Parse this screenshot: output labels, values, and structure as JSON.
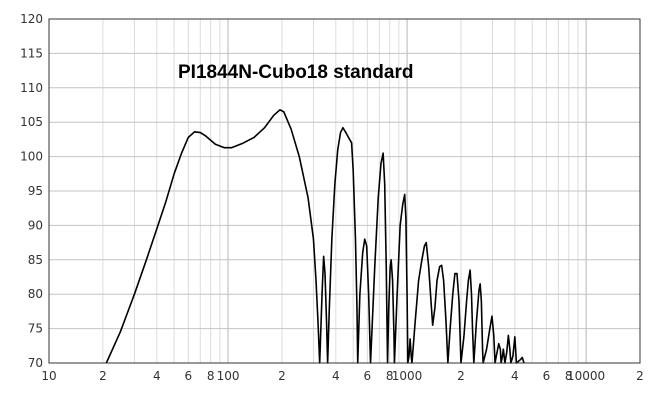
{
  "chart_data": {
    "type": "line",
    "title": "PI1844N-Cubo18 standard",
    "xlabel": "",
    "ylabel": "",
    "x_scale": "log",
    "xlim": [
      10,
      20000
    ],
    "ylim": [
      70,
      120
    ],
    "grid": true,
    "y_ticks": [
      70,
      75,
      80,
      85,
      90,
      95,
      100,
      105,
      110,
      115,
      120
    ],
    "x_tick_labels": [
      {
        "x": 10,
        "label": "10"
      },
      {
        "x": 20,
        "label": "2"
      },
      {
        "x": 40,
        "label": "4"
      },
      {
        "x": 60,
        "label": "6"
      },
      {
        "x": 80,
        "label": "8"
      },
      {
        "x": 100,
        "label": "100"
      },
      {
        "x": 200,
        "label": "2"
      },
      {
        "x": 400,
        "label": "4"
      },
      {
        "x": 600,
        "label": "6"
      },
      {
        "x": 800,
        "label": "8"
      },
      {
        "x": 1000,
        "label": "1000"
      },
      {
        "x": 2000,
        "label": "2"
      },
      {
        "x": 4000,
        "label": "4"
      },
      {
        "x": 6000,
        "label": "6"
      },
      {
        "x": 8000,
        "label": "8"
      },
      {
        "x": 10000,
        "label": "10000"
      },
      {
        "x": 20000,
        "label": "2"
      }
    ],
    "series": [
      {
        "color": "#000000",
        "points": [
          [
            20.9,
            70
          ],
          [
            25,
            74.5
          ],
          [
            30,
            80
          ],
          [
            35,
            85
          ],
          [
            40,
            89.5
          ],
          [
            45,
            93.5
          ],
          [
            50,
            97.5
          ],
          [
            55,
            100.5
          ],
          [
            60,
            102.8
          ],
          [
            65,
            103.6
          ],
          [
            70,
            103.5
          ],
          [
            75,
            103
          ],
          [
            85,
            101.8
          ],
          [
            95,
            101.3
          ],
          [
            105,
            101.3
          ],
          [
            120,
            101.9
          ],
          [
            140,
            102.8
          ],
          [
            160,
            104.2
          ],
          [
            180,
            106
          ],
          [
            195,
            106.8
          ],
          [
            205,
            106.5
          ],
          [
            225,
            104
          ],
          [
            250,
            100
          ],
          [
            280,
            94
          ],
          [
            300,
            88
          ],
          [
            310,
            82
          ],
          [
            318,
            76
          ],
          [
            325,
            70
          ],
          [
            335,
            80
          ],
          [
            342,
            85.5
          ],
          [
            348,
            83
          ],
          [
            355,
            76
          ],
          [
            360,
            70
          ],
          [
            368,
            78
          ],
          [
            380,
            88
          ],
          [
            395,
            96
          ],
          [
            410,
            101
          ],
          [
            425,
            103.5
          ],
          [
            438,
            104.2
          ],
          [
            455,
            103.5
          ],
          [
            475,
            102.6
          ],
          [
            490,
            102
          ],
          [
            500,
            98
          ],
          [
            515,
            88
          ],
          [
            525,
            78
          ],
          [
            530,
            70
          ],
          [
            545,
            80
          ],
          [
            565,
            86
          ],
          [
            580,
            88
          ],
          [
            595,
            87
          ],
          [
            610,
            80
          ],
          [
            625,
            70
          ],
          [
            660,
            84
          ],
          [
            690,
            94
          ],
          [
            715,
            99
          ],
          [
            735,
            100.5
          ],
          [
            750,
            96
          ],
          [
            765,
            84
          ],
          [
            778,
            70
          ],
          [
            790,
            78
          ],
          [
            805,
            84
          ],
          [
            815,
            85
          ],
          [
            830,
            82
          ],
          [
            845,
            74
          ],
          [
            850,
            70
          ],
          [
            880,
            80
          ],
          [
            915,
            90
          ],
          [
            945,
            93
          ],
          [
            970,
            94.5
          ],
          [
            985,
            91
          ],
          [
            1000,
            80
          ],
          [
            1010,
            70
          ],
          [
            1025,
            71
          ],
          [
            1040,
            73.5
          ],
          [
            1055,
            71
          ],
          [
            1065,
            70
          ],
          [
            1110,
            76
          ],
          [
            1160,
            82
          ],
          [
            1210,
            85
          ],
          [
            1250,
            87
          ],
          [
            1280,
            87.5
          ],
          [
            1320,
            84
          ],
          [
            1360,
            79
          ],
          [
            1390,
            75.5
          ],
          [
            1430,
            78
          ],
          [
            1470,
            82
          ],
          [
            1520,
            84
          ],
          [
            1560,
            84.2
          ],
          [
            1600,
            82
          ],
          [
            1650,
            76
          ],
          [
            1690,
            70
          ],
          [
            1740,
            75
          ],
          [
            1800,
            80
          ],
          [
            1850,
            83
          ],
          [
            1900,
            83
          ],
          [
            1950,
            79
          ],
          [
            2000,
            70
          ],
          [
            2080,
            74
          ],
          [
            2150,
            79
          ],
          [
            2200,
            82
          ],
          [
            2250,
            83.5
          ],
          [
            2290,
            80
          ],
          [
            2320,
            75
          ],
          [
            2360,
            70
          ],
          [
            2440,
            76
          ],
          [
            2520,
            80.5
          ],
          [
            2560,
            81.5
          ],
          [
            2600,
            79
          ],
          [
            2640,
            72
          ],
          [
            2660,
            70
          ],
          [
            2780,
            72
          ],
          [
            2900,
            75
          ],
          [
            2980,
            76.8
          ],
          [
            3050,
            74
          ],
          [
            3100,
            70
          ],
          [
            3150,
            71
          ],
          [
            3250,
            72.8
          ],
          [
            3320,
            72
          ],
          [
            3350,
            70
          ],
          [
            3400,
            70.8
          ],
          [
            3450,
            72
          ],
          [
            3520,
            70
          ],
          [
            3600,
            71.5
          ],
          [
            3680,
            74
          ],
          [
            3750,
            72
          ],
          [
            3800,
            70
          ],
          [
            3900,
            71
          ],
          [
            4000,
            73.8
          ],
          [
            4080,
            70
          ],
          [
            4300,
            70.5
          ],
          [
            4400,
            70.8
          ],
          [
            4500,
            70
          ]
        ]
      }
    ]
  }
}
